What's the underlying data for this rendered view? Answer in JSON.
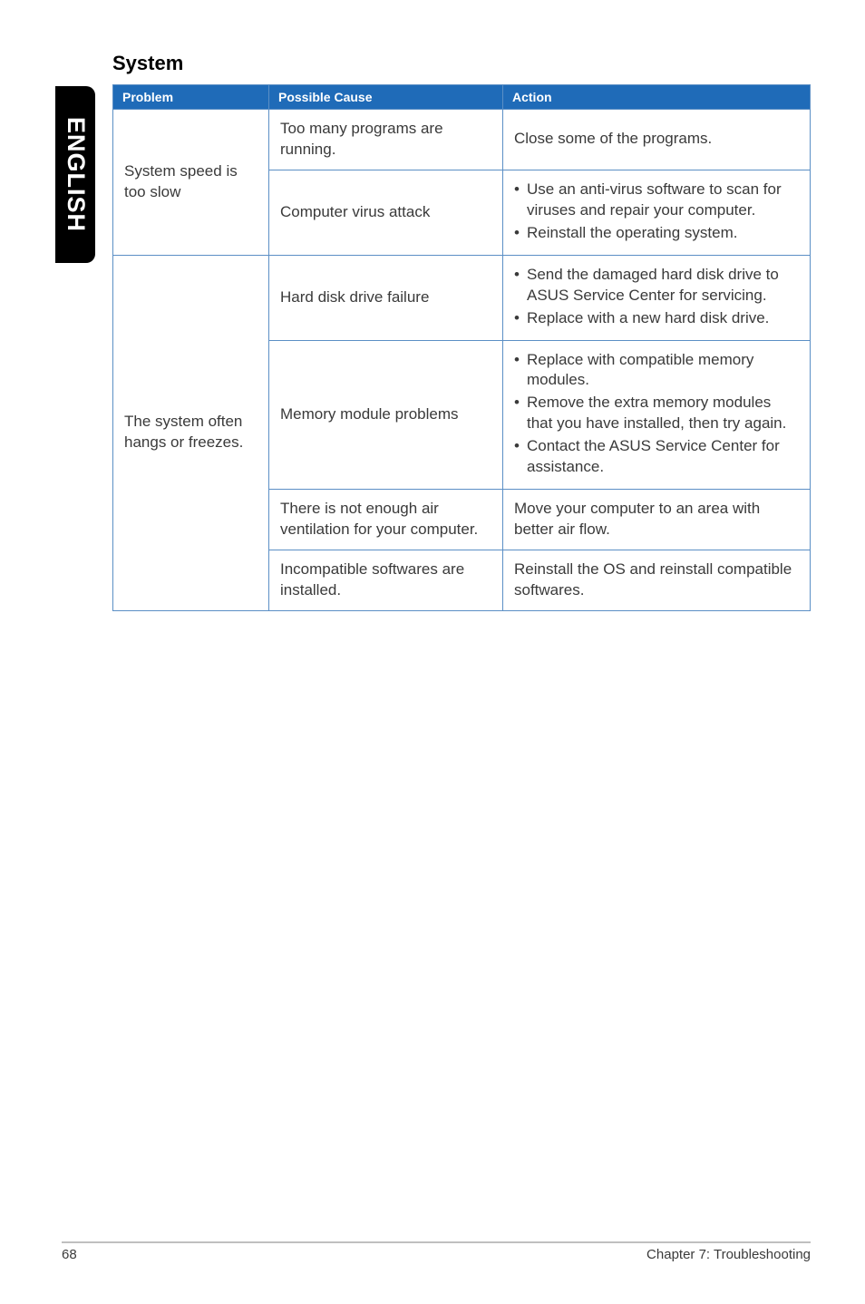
{
  "side_tab": "ENGLISH",
  "section_title": "System",
  "table": {
    "header_bg": "#1f6bb8",
    "border_color": "#5b8fc5",
    "headers": [
      "Problem",
      "Possible Cause",
      "Action"
    ],
    "problems": [
      {
        "label": "System speed is too slow",
        "rows": [
          {
            "cause": "Too many programs are running.",
            "action_plain": "Close some of the programs."
          },
          {
            "cause": "Computer virus attack",
            "action_list": [
              "Use an anti-virus software to scan for viruses and repair your computer.",
              "Reinstall the operating system."
            ]
          }
        ]
      },
      {
        "label": "The system often hangs or freezes.",
        "rows": [
          {
            "cause": "Hard disk drive failure",
            "action_list": [
              "Send the damaged hard disk drive to ASUS Service Center for servicing.",
              "Replace with a new hard disk drive."
            ]
          },
          {
            "cause": "Memory module problems",
            "action_list": [
              "Replace with compatible memory modules.",
              "Remove the extra memory modules that you have installed, then try again.",
              "Contact the ASUS Service Center for assistance."
            ]
          },
          {
            "cause": "There is not enough air ventilation for your computer.",
            "action_plain": "Move your computer to an area with better air flow."
          },
          {
            "cause": "Incompatible softwares are installed.",
            "action_plain": "Reinstall the OS and reinstall compatible softwares."
          }
        ]
      }
    ]
  },
  "footer": {
    "page": "68",
    "chapter": "Chapter 7: Troubleshooting"
  }
}
